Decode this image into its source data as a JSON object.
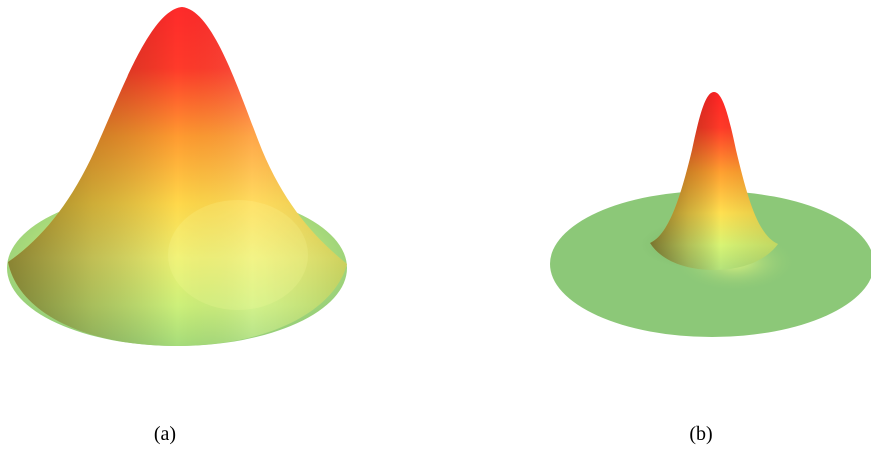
{
  "panels": [
    {
      "caption": "(a)",
      "surface": "wide-gaussian-peak"
    },
    {
      "caption": "(b)",
      "surface": "narrow-gaussian-peak"
    }
  ],
  "colors": {
    "base_green": "#8cc878",
    "light_green": "#d2f478",
    "yellow": "#ffe050",
    "orange": "#ff9a30",
    "red": "#ff2424",
    "dark_red": "#a81010"
  }
}
